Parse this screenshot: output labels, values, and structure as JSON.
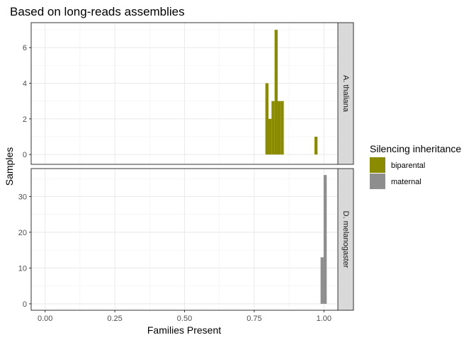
{
  "chart_data": {
    "type": "histogram",
    "title": "Based on long-reads assemblies",
    "xlabel": "Families Present",
    "ylabel": "Samples",
    "xlim": [
      -0.05,
      1.05
    ],
    "x_ticks": [
      0.0,
      0.25,
      0.5,
      0.75,
      1.0
    ],
    "x_tick_labels": [
      "0.00",
      "0.25",
      "0.50",
      "0.75",
      "1.00"
    ],
    "bin_width": 0.011,
    "grid": true,
    "legend": {
      "title": "Silencing inheritance",
      "placement": "right",
      "entries": [
        {
          "label": "biparental",
          "color": "#8B8B00"
        },
        {
          "label": "maternal",
          "color": "#8E8E8E"
        }
      ]
    },
    "panels": [
      {
        "strip_label": "A. thaliana",
        "fill_color": "#8B8B00",
        "series": "biparental",
        "ylim": [
          -0.55,
          7.4
        ],
        "y_ticks": [
          0,
          2,
          4,
          6
        ],
        "y_tick_labels": [
          "0",
          "2",
          "4",
          "6"
        ],
        "bins": [
          {
            "x": 0.7955,
            "count": 4
          },
          {
            "x": 0.8065,
            "count": 2
          },
          {
            "x": 0.8175,
            "count": 3
          },
          {
            "x": 0.8285,
            "count": 7
          },
          {
            "x": 0.8395,
            "count": 3
          },
          {
            "x": 0.8505,
            "count": 3
          },
          {
            "x": 0.9715,
            "count": 1
          }
        ]
      },
      {
        "strip_label": "D. melanogaster",
        "fill_color": "#8E8E8E",
        "series": "maternal",
        "ylim": [
          -1.8,
          37.8
        ],
        "y_ticks": [
          0,
          10,
          20,
          30
        ],
        "y_tick_labels": [
          "0",
          "10",
          "20",
          "30"
        ],
        "bins": [
          {
            "x": 0.9935,
            "count": 13
          },
          {
            "x": 1.0045,
            "count": 36
          }
        ]
      }
    ]
  }
}
